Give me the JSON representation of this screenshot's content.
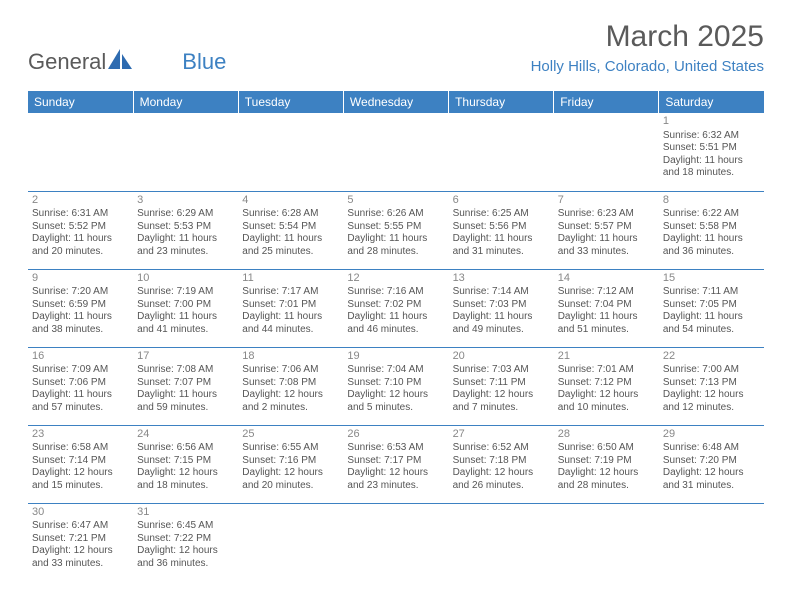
{
  "logo": {
    "text_gray": "General",
    "text_blue": "Blue"
  },
  "title": "March 2025",
  "location": "Holly Hills, Colorado, United States",
  "colors": {
    "header_bg": "#3d81c2",
    "header_text": "#ffffff",
    "border": "#3d81c2",
    "body_text": "#555555",
    "daynum": "#888888",
    "title_text": "#5a5a5a",
    "location_text": "#3d81c2"
  },
  "day_headers": [
    "Sunday",
    "Monday",
    "Tuesday",
    "Wednesday",
    "Thursday",
    "Friday",
    "Saturday"
  ],
  "weeks": [
    [
      null,
      null,
      null,
      null,
      null,
      null,
      {
        "n": "1",
        "sr": "6:32 AM",
        "ss": "5:51 PM",
        "dl": "11 hours and 18 minutes."
      }
    ],
    [
      {
        "n": "2",
        "sr": "6:31 AM",
        "ss": "5:52 PM",
        "dl": "11 hours and 20 minutes."
      },
      {
        "n": "3",
        "sr": "6:29 AM",
        "ss": "5:53 PM",
        "dl": "11 hours and 23 minutes."
      },
      {
        "n": "4",
        "sr": "6:28 AM",
        "ss": "5:54 PM",
        "dl": "11 hours and 25 minutes."
      },
      {
        "n": "5",
        "sr": "6:26 AM",
        "ss": "5:55 PM",
        "dl": "11 hours and 28 minutes."
      },
      {
        "n": "6",
        "sr": "6:25 AM",
        "ss": "5:56 PM",
        "dl": "11 hours and 31 minutes."
      },
      {
        "n": "7",
        "sr": "6:23 AM",
        "ss": "5:57 PM",
        "dl": "11 hours and 33 minutes."
      },
      {
        "n": "8",
        "sr": "6:22 AM",
        "ss": "5:58 PM",
        "dl": "11 hours and 36 minutes."
      }
    ],
    [
      {
        "n": "9",
        "sr": "7:20 AM",
        "ss": "6:59 PM",
        "dl": "11 hours and 38 minutes."
      },
      {
        "n": "10",
        "sr": "7:19 AM",
        "ss": "7:00 PM",
        "dl": "11 hours and 41 minutes."
      },
      {
        "n": "11",
        "sr": "7:17 AM",
        "ss": "7:01 PM",
        "dl": "11 hours and 44 minutes."
      },
      {
        "n": "12",
        "sr": "7:16 AM",
        "ss": "7:02 PM",
        "dl": "11 hours and 46 minutes."
      },
      {
        "n": "13",
        "sr": "7:14 AM",
        "ss": "7:03 PM",
        "dl": "11 hours and 49 minutes."
      },
      {
        "n": "14",
        "sr": "7:12 AM",
        "ss": "7:04 PM",
        "dl": "11 hours and 51 minutes."
      },
      {
        "n": "15",
        "sr": "7:11 AM",
        "ss": "7:05 PM",
        "dl": "11 hours and 54 minutes."
      }
    ],
    [
      {
        "n": "16",
        "sr": "7:09 AM",
        "ss": "7:06 PM",
        "dl": "11 hours and 57 minutes."
      },
      {
        "n": "17",
        "sr": "7:08 AM",
        "ss": "7:07 PM",
        "dl": "11 hours and 59 minutes."
      },
      {
        "n": "18",
        "sr": "7:06 AM",
        "ss": "7:08 PM",
        "dl": "12 hours and 2 minutes."
      },
      {
        "n": "19",
        "sr": "7:04 AM",
        "ss": "7:10 PM",
        "dl": "12 hours and 5 minutes."
      },
      {
        "n": "20",
        "sr": "7:03 AM",
        "ss": "7:11 PM",
        "dl": "12 hours and 7 minutes."
      },
      {
        "n": "21",
        "sr": "7:01 AM",
        "ss": "7:12 PM",
        "dl": "12 hours and 10 minutes."
      },
      {
        "n": "22",
        "sr": "7:00 AM",
        "ss": "7:13 PM",
        "dl": "12 hours and 12 minutes."
      }
    ],
    [
      {
        "n": "23",
        "sr": "6:58 AM",
        "ss": "7:14 PM",
        "dl": "12 hours and 15 minutes."
      },
      {
        "n": "24",
        "sr": "6:56 AM",
        "ss": "7:15 PM",
        "dl": "12 hours and 18 minutes."
      },
      {
        "n": "25",
        "sr": "6:55 AM",
        "ss": "7:16 PM",
        "dl": "12 hours and 20 minutes."
      },
      {
        "n": "26",
        "sr": "6:53 AM",
        "ss": "7:17 PM",
        "dl": "12 hours and 23 minutes."
      },
      {
        "n": "27",
        "sr": "6:52 AM",
        "ss": "7:18 PM",
        "dl": "12 hours and 26 minutes."
      },
      {
        "n": "28",
        "sr": "6:50 AM",
        "ss": "7:19 PM",
        "dl": "12 hours and 28 minutes."
      },
      {
        "n": "29",
        "sr": "6:48 AM",
        "ss": "7:20 PM",
        "dl": "12 hours and 31 minutes."
      }
    ],
    [
      {
        "n": "30",
        "sr": "6:47 AM",
        "ss": "7:21 PM",
        "dl": "12 hours and 33 minutes."
      },
      {
        "n": "31",
        "sr": "6:45 AM",
        "ss": "7:22 PM",
        "dl": "12 hours and 36 minutes."
      },
      null,
      null,
      null,
      null,
      null
    ]
  ],
  "labels": {
    "sunrise": "Sunrise:",
    "sunset": "Sunset:",
    "daylight": "Daylight:"
  }
}
